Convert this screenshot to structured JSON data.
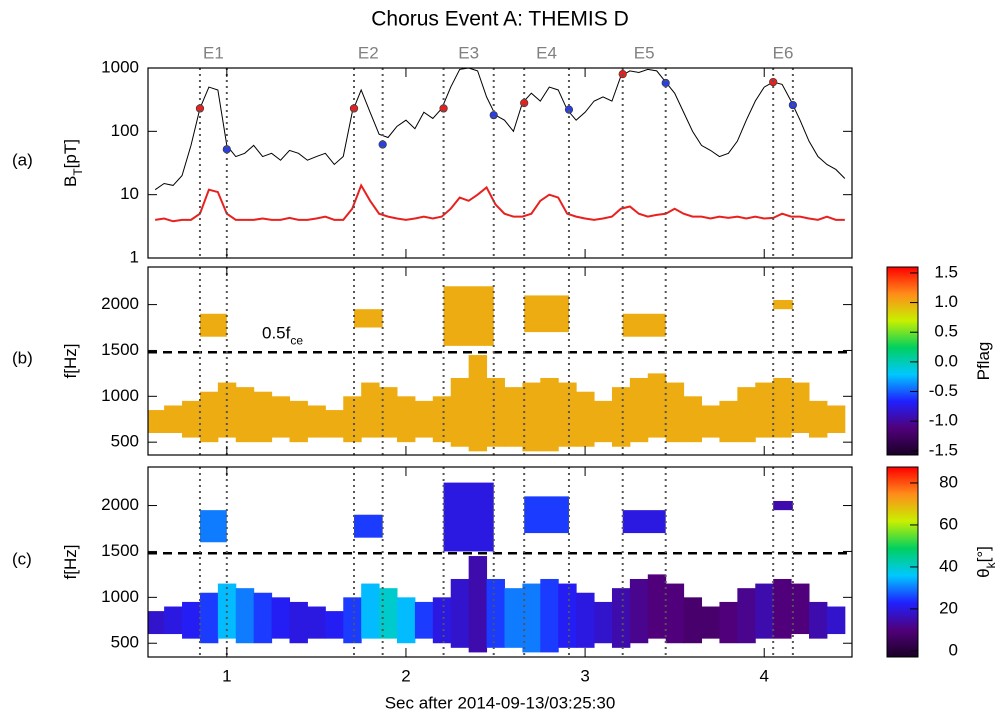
{
  "chart_data": {
    "type": "multi-panel",
    "title": "Chorus Event A: THEMIS D",
    "x_label": "Sec after 2014-09-13/03:25:30",
    "xlim": [
      0.56,
      4.49
    ],
    "xticks": [
      1,
      2,
      3,
      4
    ],
    "events": {
      "labels": [
        "E1",
        "E2",
        "E3",
        "E4",
        "E5",
        "E6"
      ],
      "start": [
        0.85,
        1.71,
        2.21,
        2.66,
        3.21,
        4.05
      ],
      "end": [
        1.0,
        1.87,
        2.49,
        2.91,
        3.45,
        4.16
      ],
      "color": "#808080"
    },
    "colormap": [
      "#1a0026",
      "#50007a",
      "#2020ff",
      "#00c8ff",
      "#00d060",
      "#c8f000",
      "#ff8c1a",
      "#ff0000"
    ],
    "panels": [
      {
        "type": "line",
        "label": "(a)",
        "ylabel": {
          "main": "B",
          "sub": "T",
          "rest": "[pT]"
        },
        "log": true,
        "ylim": [
          1,
          1000
        ],
        "yticks": [
          1,
          10,
          100,
          1000
        ],
        "x": [
          0.6,
          0.65,
          0.7,
          0.75,
          0.8,
          0.85,
          0.9,
          0.95,
          1.0,
          1.05,
          1.1,
          1.15,
          1.2,
          1.25,
          1.3,
          1.35,
          1.4,
          1.45,
          1.5,
          1.55,
          1.6,
          1.65,
          1.7,
          1.75,
          1.8,
          1.85,
          1.9,
          1.95,
          2.0,
          2.05,
          2.1,
          2.15,
          2.2,
          2.25,
          2.3,
          2.35,
          2.4,
          2.45,
          2.5,
          2.55,
          2.6,
          2.65,
          2.7,
          2.75,
          2.8,
          2.85,
          2.9,
          2.95,
          3.0,
          3.05,
          3.1,
          3.15,
          3.2,
          3.25,
          3.3,
          3.35,
          3.4,
          3.45,
          3.5,
          3.55,
          3.6,
          3.65,
          3.7,
          3.75,
          3.8,
          3.85,
          3.9,
          3.95,
          4.0,
          4.05,
          4.1,
          4.15,
          4.2,
          4.25,
          4.3,
          4.35,
          4.4,
          4.45
        ],
        "series": [
          {
            "color": "#000000",
            "values": [
              12,
              15,
              14,
              20,
              60,
              230,
              500,
              450,
              60,
              40,
              45,
              60,
              40,
              45,
              35,
              50,
              45,
              35,
              40,
              45,
              30,
              40,
              200,
              450,
              200,
              90,
              80,
              120,
              150,
              110,
              200,
              160,
              230,
              500,
              950,
              1000,
              900,
              350,
              180,
              150,
              100,
              280,
              400,
              300,
              500,
              450,
              220,
              150,
              200,
              300,
              350,
              300,
              750,
              900,
              850,
              950,
              900,
              600,
              400,
              200,
              100,
              60,
              50,
              40,
              45,
              70,
              150,
              300,
              500,
              600,
              550,
              300,
              150,
              70,
              40,
              30,
              25,
              18
            ]
          },
          {
            "color": "#e8211f",
            "values": [
              4,
              4.2,
              3.8,
              4,
              4,
              5,
              12,
              11,
              5,
              4,
              4,
              4,
              4.2,
              4,
              4,
              4.3,
              4,
              4,
              4.2,
              4.5,
              4,
              4,
              6,
              14,
              8,
              5,
              4.5,
              4.2,
              4,
              4.2,
              4.5,
              4.2,
              4.5,
              6,
              9,
              8,
              10,
              13,
              7,
              5,
              4.5,
              4.5,
              5,
              8,
              10,
              9,
              5,
              4.5,
              4.2,
              4,
              4.2,
              4.5,
              6,
              6.5,
              5,
              4.5,
              4.8,
              5,
              6,
              5,
              4.5,
              4.5,
              4.2,
              4.5,
              4.3,
              4.5,
              4.2,
              4.5,
              4.2,
              4.3,
              5,
              4.5,
              4.5,
              4.2,
              4,
              4.5,
              4,
              4
            ]
          }
        ],
        "markers": {
          "start": {
            "color": "#e8211f",
            "x": [
              0.85,
              1.71,
              2.21,
              2.66,
              3.21,
              4.05
            ],
            "values": [
              230,
              230,
              230,
              280,
              800,
              600
            ]
          },
          "end": {
            "color": "#2a3fe0",
            "x": [
              1.0,
              1.87,
              2.49,
              2.91,
              3.45,
              4.16
            ],
            "values": [
              52,
              62,
              180,
              220,
              580,
              260
            ]
          }
        }
      },
      {
        "type": "spectrogram",
        "label": "(b)",
        "ylabel": {
          "main": "f[Hz]"
        },
        "ylim": [
          360,
          2410
        ],
        "yticks": [
          500,
          1000,
          1500,
          2000
        ],
        "reference_line": 1480,
        "annotation": {
          "main": "0.5f",
          "sub": "ce"
        },
        "x": [
          0.6,
          0.7,
          0.8,
          0.9,
          1.0,
          1.1,
          1.2,
          1.3,
          1.4,
          1.5,
          1.6,
          1.7,
          1.8,
          1.9,
          2.0,
          2.1,
          2.2,
          2.3,
          2.4,
          2.5,
          2.6,
          2.7,
          2.8,
          2.9,
          3.0,
          3.1,
          3.2,
          3.3,
          3.4,
          3.5,
          3.6,
          3.7,
          3.8,
          3.9,
          4.0,
          4.1,
          4.2,
          4.3,
          4.4
        ],
        "lower": [
          600,
          600,
          550,
          500,
          550,
          500,
          500,
          550,
          500,
          550,
          550,
          500,
          550,
          550,
          500,
          550,
          500,
          450,
          400,
          450,
          450,
          400,
          400,
          450,
          450,
          500,
          450,
          500,
          550,
          500,
          500,
          550,
          500,
          500,
          550,
          550,
          600,
          550,
          600
        ],
        "upper": [
          850,
          900,
          950,
          1050,
          1150,
          1100,
          1050,
          1000,
          950,
          900,
          850,
          1000,
          1150,
          1100,
          1000,
          950,
          1000,
          1200,
          1450,
          1200,
          1100,
          1150,
          1200,
          1150,
          1050,
          950,
          1100,
          1200,
          1250,
          1150,
          1000,
          900,
          950,
          1100,
          1150,
          1200,
          1150,
          950,
          900
        ],
        "values": [
          1,
          1,
          1,
          1,
          1,
          1,
          1,
          1,
          1,
          1,
          1,
          1,
          1,
          1,
          1,
          1,
          1,
          1,
          1,
          1,
          1,
          1,
          1,
          1,
          1,
          1,
          1,
          1,
          1,
          1,
          1,
          1,
          1,
          1,
          1,
          1,
          1,
          1,
          1
        ],
        "patches": [
          {
            "x": [
              0.85,
              1.0
            ],
            "f": [
              1650,
              1900
            ],
            "value": 1
          },
          {
            "x": [
              1.71,
              1.87
            ],
            "f": [
              1750,
              1950
            ],
            "value": 1
          },
          {
            "x": [
              2.21,
              2.49
            ],
            "f": [
              1550,
              2200
            ],
            "value": 1
          },
          {
            "x": [
              2.66,
              2.91
            ],
            "f": [
              1700,
              2100
            ],
            "value": 1
          },
          {
            "x": [
              3.21,
              3.45
            ],
            "f": [
              1650,
              1900
            ],
            "value": 1
          },
          {
            "x": [
              4.05,
              4.16
            ],
            "f": [
              1950,
              2050
            ],
            "value": 1
          }
        ],
        "colorbar": {
          "label": {
            "main": "Pflag"
          },
          "lim": [
            -1.57,
            1.6
          ],
          "ticks": [
            1.5,
            {
              "value": 1,
              "label": "1.0"
            },
            0.5,
            {
              "value": 0,
              "label": "0.0"
            },
            -0.5,
            {
              "value": -1,
              "label": "-1.0"
            },
            -1.5
          ]
        }
      },
      {
        "type": "spectrogram",
        "label": "(c)",
        "ylabel": {
          "main": "f[Hz]"
        },
        "ylim": [
          350,
          2420
        ],
        "yticks": [
          500,
          1000,
          1500,
          2000
        ],
        "reference_line": 1480,
        "x": [
          0.6,
          0.7,
          0.8,
          0.9,
          1.0,
          1.1,
          1.2,
          1.3,
          1.4,
          1.5,
          1.6,
          1.7,
          1.8,
          1.9,
          2.0,
          2.1,
          2.2,
          2.3,
          2.4,
          2.5,
          2.6,
          2.7,
          2.8,
          2.9,
          3.0,
          3.1,
          3.2,
          3.3,
          3.4,
          3.5,
          3.6,
          3.7,
          3.8,
          3.9,
          4.0,
          4.1,
          4.2,
          4.3,
          4.4
        ],
        "lower": [
          600,
          600,
          550,
          500,
          550,
          500,
          500,
          550,
          500,
          550,
          550,
          500,
          550,
          550,
          500,
          550,
          500,
          450,
          400,
          450,
          450,
          400,
          400,
          450,
          450,
          500,
          450,
          500,
          550,
          500,
          500,
          550,
          500,
          500,
          550,
          550,
          600,
          550,
          600
        ],
        "upper": [
          850,
          900,
          950,
          1050,
          1150,
          1100,
          1050,
          1000,
          950,
          900,
          850,
          1000,
          1150,
          1100,
          1000,
          950,
          1000,
          1200,
          1450,
          1200,
          1100,
          1150,
          1200,
          1150,
          1050,
          950,
          1100,
          1200,
          1250,
          1150,
          1000,
          900,
          950,
          1100,
          1150,
          1200,
          1150,
          950,
          900
        ],
        "values": [
          18,
          20,
          22,
          25,
          35,
          30,
          25,
          22,
          20,
          20,
          22,
          25,
          35,
          40,
          35,
          25,
          20,
          18,
          15,
          25,
          30,
          30,
          25,
          22,
          20,
          18,
          15,
          12,
          10,
          10,
          8,
          8,
          10,
          12,
          15,
          10,
          10,
          15,
          18
        ],
        "patches": [
          {
            "x": [
              0.85,
              1.0
            ],
            "f": [
              1600,
              1950
            ],
            "value": 30
          },
          {
            "x": [
              1.71,
              1.87
            ],
            "f": [
              1650,
              1900
            ],
            "value": 25
          },
          {
            "x": [
              2.21,
              2.49
            ],
            "f": [
              1500,
              2250
            ],
            "value": 20
          },
          {
            "x": [
              2.66,
              2.91
            ],
            "f": [
              1700,
              2100
            ],
            "value": 25
          },
          {
            "x": [
              3.21,
              3.45
            ],
            "f": [
              1700,
              1950
            ],
            "value": 20
          },
          {
            "x": [
              4.05,
              4.16
            ],
            "f": [
              1950,
              2050
            ],
            "value": 15
          }
        ],
        "colorbar": {
          "label": {
            "main": "θ",
            "sub": "k",
            "rest": "[°]"
          },
          "lim": [
            -2.9,
            87.6
          ],
          "ticks": [
            0,
            20,
            40,
            60,
            80
          ]
        }
      }
    ]
  }
}
